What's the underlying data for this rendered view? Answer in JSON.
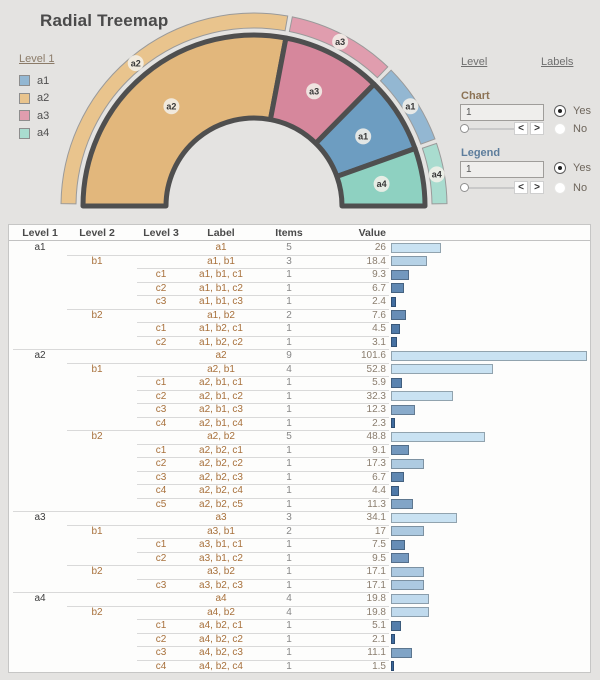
{
  "title": "Radial Treemap",
  "legend": {
    "title": "Level 1",
    "items": [
      {
        "label": "a1",
        "color": "#93b7d2"
      },
      {
        "label": "a2",
        "color": "#e9c48d"
      },
      {
        "label": "a3",
        "color": "#e09dae"
      },
      {
        "label": "a4",
        "color": "#a9dccf"
      }
    ]
  },
  "chart_data": [
    {
      "type": "pie",
      "variant": "half-donut-radial-treemap",
      "title": "Radial Treemap",
      "angle_span_deg": 180,
      "order": "clockwise from left (180deg) to right (0deg)",
      "categories": [
        "a2",
        "a3",
        "a1",
        "a4"
      ],
      "values": [
        101.6,
        34.1,
        26,
        19.8
      ],
      "total": 181.5,
      "colors": [
        "#e2b77c",
        "#d6879c",
        "#6d9dc1",
        "#8ed1c1"
      ],
      "ring_colors": [
        "#e9c48d",
        "#e09dae",
        "#93b7d2",
        "#a9dccf"
      ],
      "labels_shown": [
        "a2",
        "a3",
        "a1",
        "a4"
      ],
      "border_color": "#4f4f4f"
    },
    {
      "type": "bar",
      "orientation": "horizontal",
      "categories": [
        "a1",
        "a1, b1",
        "a1, b1, c1",
        "a1, b1, c2",
        "a1, b1, c3",
        "a1, b2",
        "a1, b2, c1",
        "a1, b2, c2",
        "a2",
        "a2, b1",
        "a2, b1, c1",
        "a2, b1, c2",
        "a2, b1, c3",
        "a2, b1, c4",
        "a2, b2",
        "a2, b2, c1",
        "a2, b2, c2",
        "a2, b2, c3",
        "a2, b2, c4",
        "a2, b2, c5",
        "a3",
        "a3, b1",
        "a3, b1, c1",
        "a3, b1, c2",
        "a3, b2",
        "a3, b2, c3",
        "a4",
        "a4, b2",
        "a4, b2, c1",
        "a4, b2, c2",
        "a4, b2, c3",
        "a4, b2, c4"
      ],
      "values": [
        26,
        18.4,
        9.3,
        6.7,
        2.4,
        7.6,
        4.5,
        3.1,
        101.6,
        52.8,
        5.9,
        32.3,
        12.3,
        2.3,
        48.8,
        9.1,
        17.3,
        6.7,
        4.4,
        11.3,
        34.1,
        17,
        7.5,
        9.5,
        17.1,
        17.1,
        19.8,
        19.8,
        5.1,
        2.1,
        11.1,
        1.5
      ],
      "xlim": [
        0,
        103
      ],
      "color_scale": {
        "low_value_color": "#3a679b",
        "high_value_color": "#c9e2f2",
        "domain": [
          1.5,
          21
        ]
      }
    }
  ],
  "controls": {
    "level_header": "Level",
    "labels_header": "Labels",
    "slider_icons": {
      "left": "<",
      "right": ">"
    },
    "chart": {
      "label": "Chart",
      "value": "1",
      "yes": "Yes",
      "no": "No",
      "selected": "Yes"
    },
    "legend": {
      "label": "Legend",
      "value": "1",
      "yes": "Yes",
      "no": "No",
      "selected": "Yes"
    }
  },
  "table": {
    "headers": [
      "Level 1",
      "Level 2",
      "Level 3",
      "Label",
      "Items",
      "Value"
    ],
    "rows": [
      {
        "level1": "a1",
        "level2": "",
        "level3": "",
        "label": "a1",
        "items": 5,
        "value": 26
      },
      {
        "level1": "",
        "level2": "b1",
        "level3": "",
        "label": "a1, b1",
        "items": 3,
        "value": 18.4
      },
      {
        "level1": "",
        "level2": "",
        "level3": "c1",
        "label": "a1, b1, c1",
        "items": 1,
        "value": 9.3
      },
      {
        "level1": "",
        "level2": "",
        "level3": "c2",
        "label": "a1, b1, c2",
        "items": 1,
        "value": 6.7
      },
      {
        "level1": "",
        "level2": "",
        "level3": "c3",
        "label": "a1, b1, c3",
        "items": 1,
        "value": 2.4
      },
      {
        "level1": "",
        "level2": "b2",
        "level3": "",
        "label": "a1, b2",
        "items": 2,
        "value": 7.6
      },
      {
        "level1": "",
        "level2": "",
        "level3": "c1",
        "label": "a1, b2, c1",
        "items": 1,
        "value": 4.5
      },
      {
        "level1": "",
        "level2": "",
        "level3": "c2",
        "label": "a1, b2, c2",
        "items": 1,
        "value": 3.1
      },
      {
        "level1": "a2",
        "level2": "",
        "level3": "",
        "label": "a2",
        "items": 9,
        "value": 101.6
      },
      {
        "level1": "",
        "level2": "b1",
        "level3": "",
        "label": "a2, b1",
        "items": 4,
        "value": 52.8
      },
      {
        "level1": "",
        "level2": "",
        "level3": "c1",
        "label": "a2, b1, c1",
        "items": 1,
        "value": 5.9
      },
      {
        "level1": "",
        "level2": "",
        "level3": "c2",
        "label": "a2, b1, c2",
        "items": 1,
        "value": 32.3
      },
      {
        "level1": "",
        "level2": "",
        "level3": "c3",
        "label": "a2, b1, c3",
        "items": 1,
        "value": 12.3
      },
      {
        "level1": "",
        "level2": "",
        "level3": "c4",
        "label": "a2, b1, c4",
        "items": 1,
        "value": 2.3
      },
      {
        "level1": "",
        "level2": "b2",
        "level3": "",
        "label": "a2, b2",
        "items": 5,
        "value": 48.8
      },
      {
        "level1": "",
        "level2": "",
        "level3": "c1",
        "label": "a2, b2, c1",
        "items": 1,
        "value": 9.1
      },
      {
        "level1": "",
        "level2": "",
        "level3": "c2",
        "label": "a2, b2, c2",
        "items": 1,
        "value": 17.3
      },
      {
        "level1": "",
        "level2": "",
        "level3": "c3",
        "label": "a2, b2, c3",
        "items": 1,
        "value": 6.7
      },
      {
        "level1": "",
        "level2": "",
        "level3": "c4",
        "label": "a2, b2, c4",
        "items": 1,
        "value": 4.4
      },
      {
        "level1": "",
        "level2": "",
        "level3": "c5",
        "label": "a2, b2, c5",
        "items": 1,
        "value": 11.3
      },
      {
        "level1": "a3",
        "level2": "",
        "level3": "",
        "label": "a3",
        "items": 3,
        "value": 34.1
      },
      {
        "level1": "",
        "level2": "b1",
        "level3": "",
        "label": "a3, b1",
        "items": 2,
        "value": 17
      },
      {
        "level1": "",
        "level2": "",
        "level3": "c1",
        "label": "a3, b1, c1",
        "items": 1,
        "value": 7.5
      },
      {
        "level1": "",
        "level2": "",
        "level3": "c2",
        "label": "a3, b1, c2",
        "items": 1,
        "value": 9.5
      },
      {
        "level1": "",
        "level2": "b2",
        "level3": "",
        "label": "a3, b2",
        "items": 1,
        "value": 17.1
      },
      {
        "level1": "",
        "level2": "",
        "level3": "c3",
        "label": "a3, b2, c3",
        "items": 1,
        "value": 17.1
      },
      {
        "level1": "a4",
        "level2": "",
        "level3": "",
        "label": "a4",
        "items": 4,
        "value": 19.8
      },
      {
        "level1": "",
        "level2": "b2",
        "level3": "",
        "label": "a4, b2",
        "items": 4,
        "value": 19.8
      },
      {
        "level1": "",
        "level2": "",
        "level3": "c1",
        "label": "a4, b2, c1",
        "items": 1,
        "value": 5.1
      },
      {
        "level1": "",
        "level2": "",
        "level3": "c2",
        "label": "a4, b2, c2",
        "items": 1,
        "value": 2.1
      },
      {
        "level1": "",
        "level2": "",
        "level3": "c3",
        "label": "a4, b2, c3",
        "items": 1,
        "value": 11.1
      },
      {
        "level1": "",
        "level2": "",
        "level3": "c4",
        "label": "a4, b2, c4",
        "items": 1,
        "value": 1.5
      }
    ]
  }
}
